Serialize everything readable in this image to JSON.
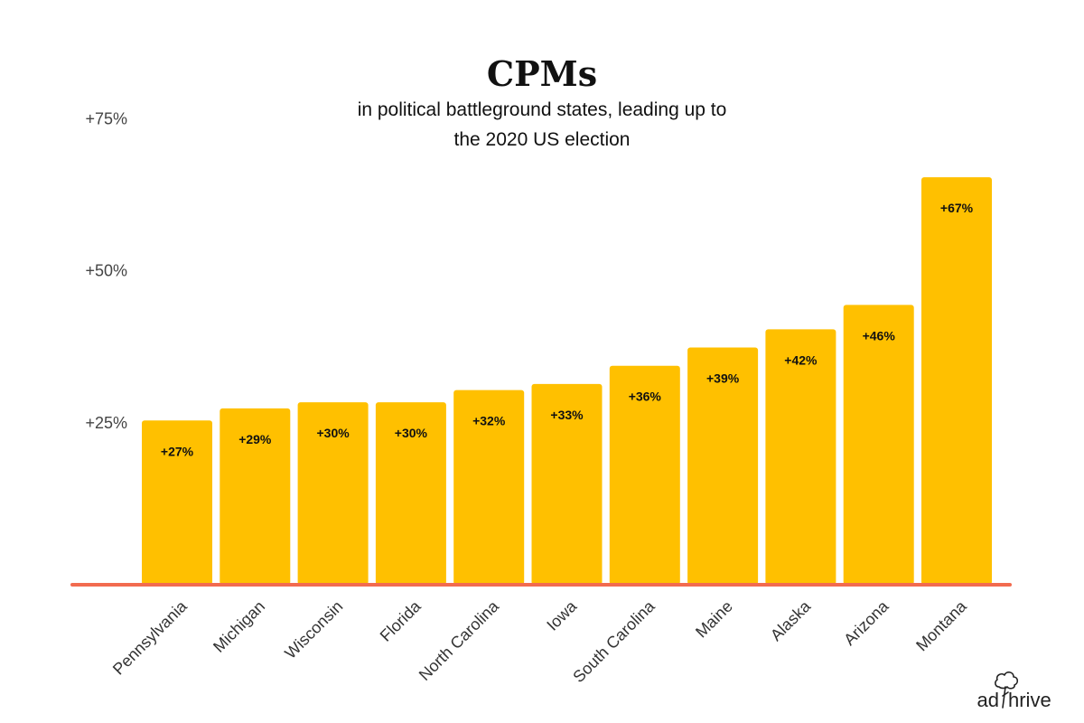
{
  "chart_data": {
    "type": "bar",
    "title": "CPMs",
    "subtitle_lines": [
      "in political battleground states, leading up to",
      "the 2020 US election"
    ],
    "categories": [
      "Pennsylvania",
      "Michigan",
      "Wisconsin",
      "Florida",
      "North Carolina",
      "Iowa",
      "South Carolina",
      "Maine",
      "Alaska",
      "Arizona",
      "Montana"
    ],
    "values": [
      27,
      29,
      30,
      30,
      32,
      33,
      36,
      39,
      42,
      46,
      67
    ],
    "value_labels": [
      "+27%",
      "+29%",
      "+30%",
      "+30%",
      "+32%",
      "+33%",
      "+36%",
      "+39%",
      "+42%",
      "+46%",
      "+67%"
    ],
    "yticks": [
      25,
      50,
      75
    ],
    "ytick_labels": [
      "+25%",
      "+50%",
      "+75%"
    ],
    "ylim": [
      0,
      75
    ],
    "xlabel": "",
    "ylabel": "",
    "grid": false,
    "bar_color": "#FFC000",
    "baseline_color": "#F26B4F"
  },
  "logo": {
    "text_left": "ad",
    "text_right": "hrive",
    "color": "#222222"
  }
}
